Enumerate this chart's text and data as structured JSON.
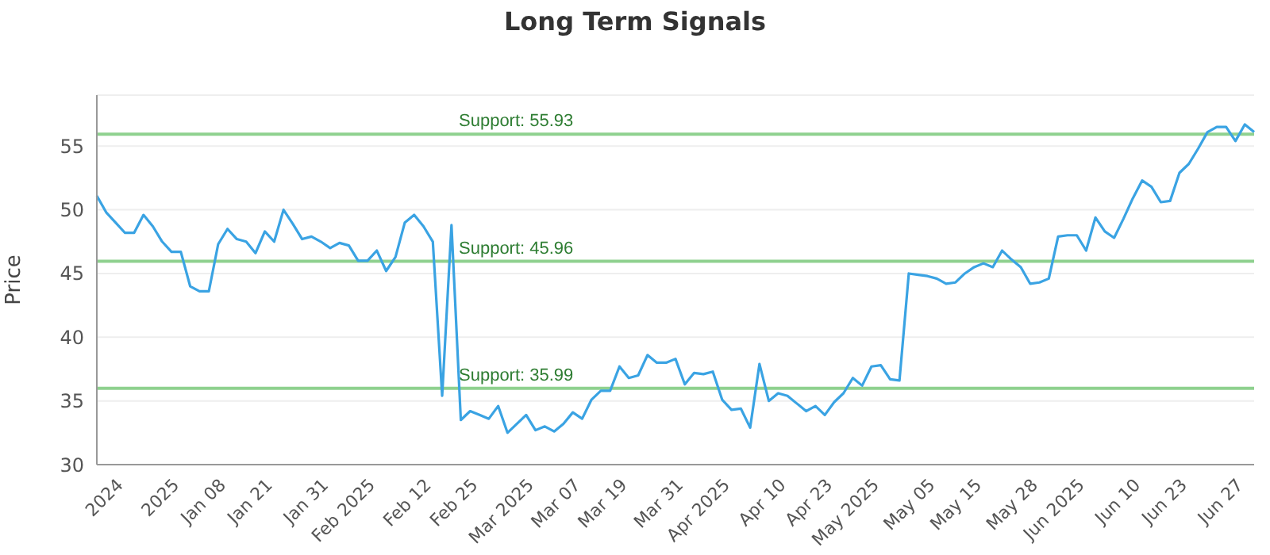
{
  "chart_data": {
    "type": "line",
    "title": "Long Term Signals",
    "ylabel": "Price",
    "categories": [
      null,
      null,
      null,
      "2024",
      null,
      null,
      null,
      null,
      null,
      "2025",
      null,
      null,
      null,
      null,
      "Jan 08",
      null,
      null,
      null,
      null,
      "Jan 21",
      null,
      null,
      null,
      null,
      null,
      "Jan 31",
      null,
      null,
      null,
      null,
      "Feb 2025",
      null,
      null,
      null,
      null,
      null,
      "Feb 12",
      null,
      null,
      null,
      null,
      "Feb 25",
      null,
      null,
      null,
      null,
      null,
      "Mar 2025",
      null,
      null,
      null,
      null,
      "Mar 07",
      null,
      null,
      null,
      null,
      "Mar 19",
      null,
      null,
      null,
      null,
      null,
      "Mar 31",
      null,
      null,
      null,
      null,
      "Apr 2025",
      null,
      null,
      null,
      null,
      null,
      "Apr 10",
      null,
      null,
      null,
      null,
      "Apr 23",
      null,
      null,
      null,
      null,
      "May 2025",
      null,
      null,
      null,
      null,
      null,
      "May 05",
      null,
      null,
      null,
      null,
      "May 15",
      null,
      null,
      null,
      null,
      null,
      "May 28",
      null,
      null,
      null,
      null,
      "Jun 2025",
      null,
      null,
      null,
      null,
      null,
      "Jun 10",
      null,
      null,
      null,
      null,
      "Jun 23",
      null,
      null,
      null,
      null,
      null,
      "Jun 27",
      null
    ],
    "series": [
      {
        "color": "#3aa3e3",
        "values": [
          51.1,
          49.8,
          49.0,
          48.2,
          48.2,
          49.6,
          48.7,
          47.5,
          46.7,
          46.7,
          44.0,
          43.6,
          43.6,
          47.3,
          48.5,
          47.7,
          47.5,
          46.6,
          48.3,
          47.5,
          50.0,
          48.9,
          47.7,
          47.9,
          47.5,
          47.0,
          47.4,
          47.2,
          46.0,
          46.0,
          46.8,
          45.2,
          46.3,
          49.0,
          49.6,
          48.7,
          47.5,
          35.4,
          48.8,
          33.5,
          34.2,
          33.9,
          33.6,
          34.6,
          32.5,
          33.2,
          33.9,
          32.7,
          33.0,
          32.6,
          33.2,
          34.1,
          33.6,
          35.1,
          35.8,
          35.8,
          37.7,
          36.8,
          37.0,
          38.6,
          38.0,
          38.0,
          38.3,
          36.3,
          37.2,
          37.1,
          37.3,
          35.1,
          34.3,
          34.4,
          32.9,
          37.9,
          35.0,
          35.6,
          35.4,
          34.8,
          34.2,
          34.6,
          33.9,
          34.9,
          35.6,
          36.8,
          36.2,
          37.7,
          37.8,
          36.7,
          36.6,
          45.0,
          44.9,
          44.8,
          44.6,
          44.2,
          44.3,
          45.0,
          45.5,
          45.8,
          45.5,
          46.8,
          46.1,
          45.5,
          44.2,
          44.3,
          44.6,
          47.9,
          48.0,
          48.0,
          46.8,
          49.4,
          48.3,
          47.8,
          49.3,
          50.9,
          52.3,
          51.8,
          50.6,
          50.7,
          52.9,
          53.6,
          54.8,
          56.1,
          56.5,
          56.5,
          55.4,
          56.7,
          56.1
        ]
      }
    ],
    "ylim": [
      30,
      59
    ],
    "yticks": [
      30,
      35,
      40,
      45,
      50,
      55
    ],
    "grid": "y",
    "marker": "none",
    "line_style": "solid",
    "ref_lines": [
      {
        "axis": "y",
        "value": 55.93,
        "label": "Support: 55.93",
        "color": "#8fd18f"
      },
      {
        "axis": "y",
        "value": 45.96,
        "label": "Support: 45.96",
        "color": "#8fd18f"
      },
      {
        "axis": "y",
        "value": 35.99,
        "label": "Support: 35.99",
        "color": "#8fd18f"
      }
    ]
  }
}
